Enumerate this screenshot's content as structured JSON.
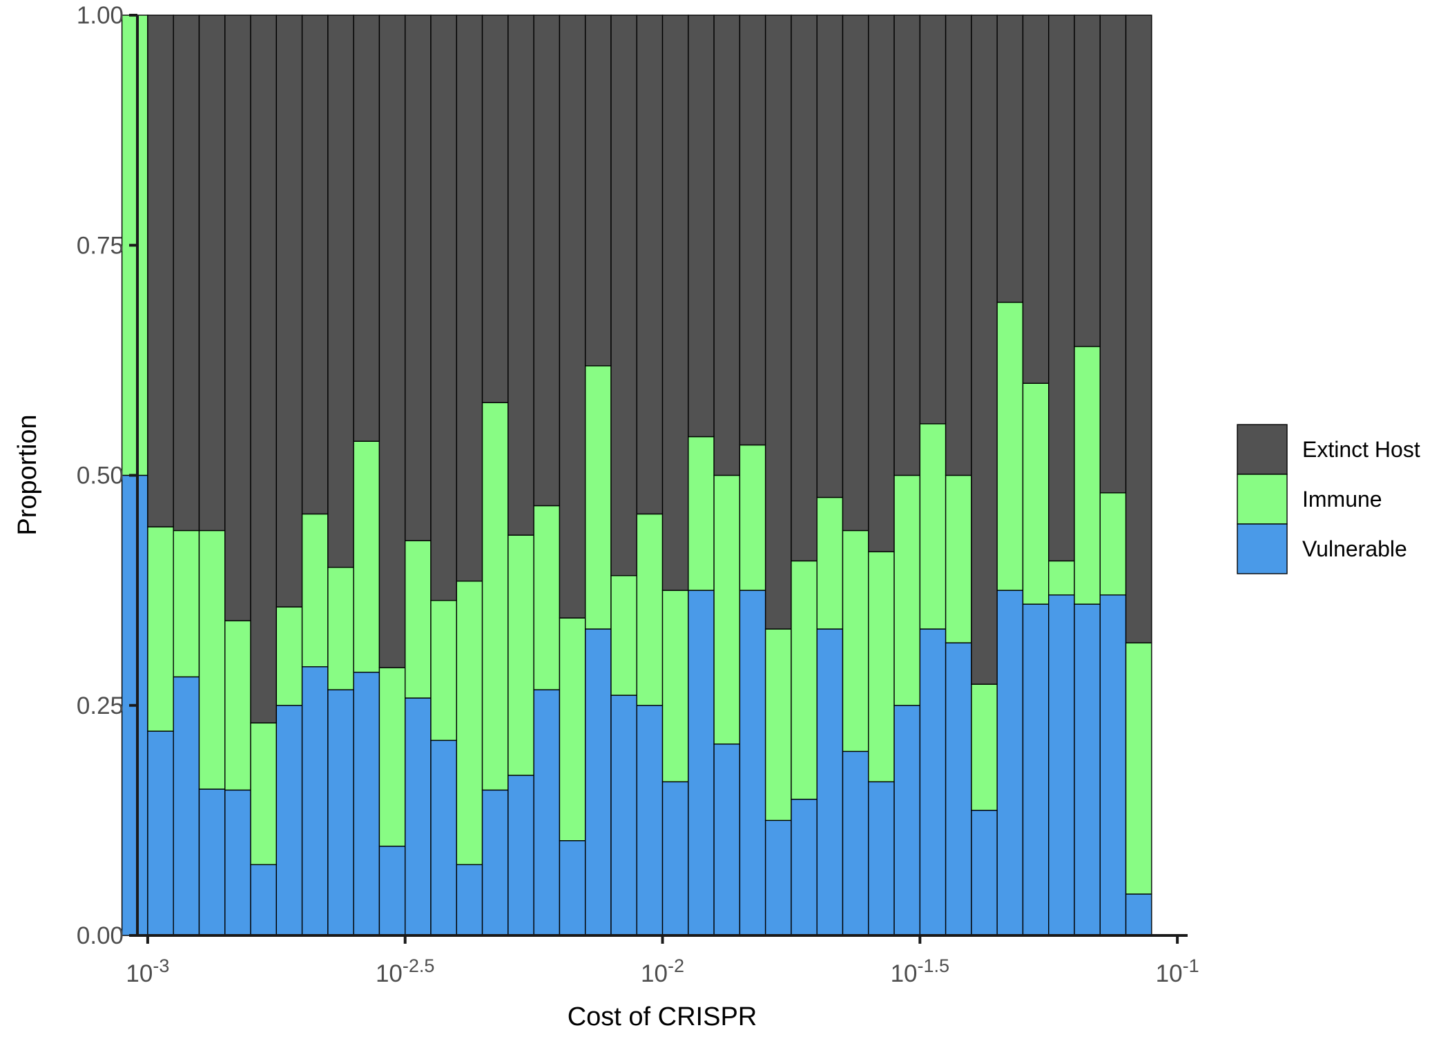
{
  "chart_data": {
    "type": "bar",
    "stacked": true,
    "xlabel": "Cost of CRISPR",
    "ylabel": "Proportion",
    "x_scale": "log10",
    "xlim": [
      0.000955,
      0.1047
    ],
    "ylim": [
      0,
      1
    ],
    "x_ticks": [
      {
        "value": 0.001,
        "base": "10",
        "exp": "-3"
      },
      {
        "value": 0.0031623,
        "base": "10",
        "exp": "-2.5"
      },
      {
        "value": 0.01,
        "base": "10",
        "exp": "-2"
      },
      {
        "value": 0.031623,
        "base": "10",
        "exp": "-1.5"
      },
      {
        "value": 0.1,
        "base": "10",
        "exp": "-1"
      }
    ],
    "y_ticks": [
      {
        "value": 0,
        "label": "0.00"
      },
      {
        "value": 0.25,
        "label": "0.25"
      },
      {
        "value": 0.5,
        "label": "0.50"
      },
      {
        "value": 0.75,
        "label": "0.75"
      },
      {
        "value": 1,
        "label": "1.00"
      }
    ],
    "bins_log10": {
      "start": -3.05,
      "width": 0.05
    },
    "series": [
      {
        "name": "Vulnerable",
        "color": "#4a9ae8",
        "values": [
          0.5,
          0.222,
          0.281,
          0.159,
          0.158,
          0.077,
          0.25,
          0.292,
          0.267,
          0.286,
          0.097,
          0.258,
          0.212,
          0.077,
          0.158,
          0.174,
          0.267,
          0.103,
          0.333,
          0.261,
          0.25,
          0.167,
          0.375,
          0.208,
          0.375,
          0.125,
          0.148,
          0.333,
          0.2,
          0.167,
          0.25,
          0.333,
          0.318,
          0.136,
          0.375,
          0.36,
          0.37,
          0.36,
          0.37,
          0.045
        ]
      },
      {
        "name": "Immune",
        "color": "#88fc84",
        "values": [
          0.5,
          0.222,
          0.159,
          0.281,
          0.184,
          0.154,
          0.107,
          0.166,
          0.133,
          0.251,
          0.194,
          0.171,
          0.152,
          0.308,
          0.421,
          0.261,
          0.2,
          0.242,
          0.286,
          0.13,
          0.208,
          0.208,
          0.167,
          0.292,
          0.158,
          0.208,
          0.259,
          0.143,
          0.24,
          0.25,
          0.25,
          0.223,
          0.182,
          0.137,
          0.313,
          0.24,
          0.037,
          0.28,
          0.111,
          0.273
        ]
      },
      {
        "name": "Extinct Host",
        "color": "#525252",
        "values": [
          0.0,
          0.556,
          0.56,
          0.56,
          0.658,
          0.769,
          0.643,
          0.542,
          0.6,
          0.463,
          0.709,
          0.571,
          0.636,
          0.615,
          0.421,
          0.565,
          0.533,
          0.655,
          0.381,
          0.609,
          0.542,
          0.625,
          0.458,
          0.5,
          0.467,
          0.667,
          0.593,
          0.524,
          0.56,
          0.583,
          0.5,
          0.444,
          0.5,
          0.727,
          0.312,
          0.4,
          0.593,
          0.36,
          0.519,
          0.682
        ]
      }
    ],
    "legend": {
      "placement": "right",
      "entries": [
        {
          "label": "Extinct Host",
          "color": "#525252"
        },
        {
          "label": "Immune",
          "color": "#88fc84"
        },
        {
          "label": "Vulnerable",
          "color": "#4a9ae8"
        }
      ]
    },
    "grid": false
  }
}
